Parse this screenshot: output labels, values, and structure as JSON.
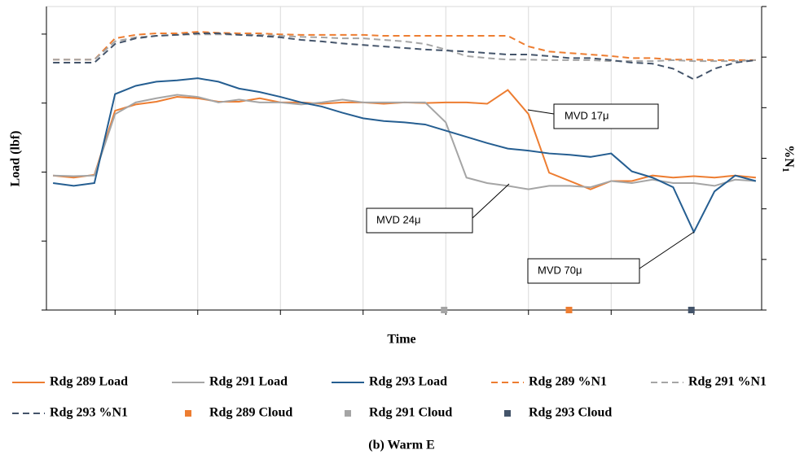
{
  "chart_data": {
    "type": "line",
    "title": "(b) Warm E",
    "xlabel": "Time",
    "ylabel": "Load (lbf)",
    "y2label": [
      "%N",
      "1"
    ],
    "x": [
      -0.75,
      -0.5,
      -0.25,
      0,
      0.25,
      0.5,
      0.75,
      1,
      1.25,
      1.5,
      1.75,
      2,
      2.25,
      2.5,
      2.75,
      3,
      3.25,
      3.5,
      3.75,
      4,
      4.25,
      4.5,
      4.75,
      5,
      5.25,
      5.5,
      5.75,
      6,
      6.25,
      6.5,
      6.75,
      7,
      7.25,
      7.5,
      7.75
    ],
    "xlim": [
      -0.83,
      7.82
    ],
    "xticks": [
      0,
      1,
      2,
      3,
      4,
      5,
      6,
      7
    ],
    "ylim": [
      0,
      4.4
    ],
    "yticks": [
      0,
      1,
      2,
      3,
      4
    ],
    "y2lim": [
      0,
      6
    ],
    "y2ticks": [
      0,
      1,
      2,
      3,
      4,
      5,
      6
    ],
    "grid": "x",
    "series": [
      {
        "name": "Rdg 289 Load",
        "color": "#ed7d31",
        "style": "solid",
        "values": [
          1.95,
          1.92,
          1.96,
          2.89,
          2.98,
          3.02,
          3.09,
          3.07,
          3.02,
          3.02,
          3.07,
          3.01,
          3.01,
          2.99,
          3.01,
          3.01,
          2.99,
          3.01,
          3.0,
          3.01,
          3.01,
          2.99,
          3.19,
          2.84,
          1.99,
          1.87,
          1.75,
          1.87,
          1.87,
          1.95,
          1.92,
          1.94,
          1.92,
          1.95,
          1.92
        ]
      },
      {
        "name": "Rdg 291 Load",
        "color": "#a5a5a5",
        "style": "solid",
        "values": [
          1.95,
          1.94,
          1.95,
          2.84,
          3.01,
          3.07,
          3.12,
          3.09,
          3.01,
          3.05,
          3.01,
          3.01,
          2.98,
          3.01,
          3.05,
          3.01,
          3.01,
          3.01,
          3.01,
          2.72,
          1.92,
          1.84,
          1.8,
          1.75,
          1.8,
          1.8,
          1.78,
          1.87,
          1.84,
          1.89,
          1.84,
          1.84,
          1.8,
          1.89,
          1.87
        ]
      },
      {
        "name": "Rdg 293 Load",
        "color": "#255e91",
        "style": "solid",
        "values": [
          1.84,
          1.8,
          1.84,
          3.13,
          3.25,
          3.31,
          3.33,
          3.36,
          3.31,
          3.21,
          3.16,
          3.09,
          3.01,
          2.95,
          2.86,
          2.78,
          2.74,
          2.72,
          2.69,
          2.6,
          2.51,
          2.42,
          2.34,
          2.31,
          2.27,
          2.25,
          2.22,
          2.27,
          2.01,
          1.92,
          1.78,
          1.13,
          1.72,
          1.95,
          1.87
        ]
      },
      {
        "name": "Rdg 289 %N1",
        "color": "#ed7d31",
        "style": "dashed",
        "axis": "y2",
        "values": [
          4.95,
          4.95,
          4.95,
          5.37,
          5.44,
          5.47,
          5.47,
          5.5,
          5.48,
          5.47,
          5.47,
          5.45,
          5.44,
          5.44,
          5.44,
          5.44,
          5.42,
          5.42,
          5.42,
          5.42,
          5.42,
          5.42,
          5.42,
          5.21,
          5.11,
          5.08,
          5.05,
          5.02,
          4.98,
          4.98,
          4.95,
          4.95,
          4.94,
          4.94,
          4.94
        ]
      },
      {
        "name": "Rdg 291 %N1",
        "color": "#a5a5a5",
        "style": "dashed",
        "axis": "y2",
        "values": [
          4.95,
          4.95,
          4.95,
          5.31,
          5.39,
          5.42,
          5.44,
          5.45,
          5.45,
          5.44,
          5.44,
          5.42,
          5.4,
          5.39,
          5.37,
          5.37,
          5.34,
          5.31,
          5.26,
          5.15,
          5.02,
          4.98,
          4.95,
          4.95,
          4.94,
          4.94,
          4.94,
          4.92,
          4.92,
          4.92,
          4.94,
          4.92,
          4.92,
          4.92,
          4.94
        ]
      },
      {
        "name": "Rdg 293 %N1",
        "color": "#44546a",
        "style": "dashed",
        "axis": "y2",
        "values": [
          4.89,
          4.89,
          4.89,
          5.26,
          5.37,
          5.42,
          5.44,
          5.47,
          5.47,
          5.44,
          5.42,
          5.39,
          5.34,
          5.31,
          5.27,
          5.24,
          5.21,
          5.18,
          5.15,
          5.13,
          5.11,
          5.08,
          5.05,
          5.05,
          5.02,
          4.98,
          4.98,
          4.94,
          4.89,
          4.87,
          4.77,
          4.56,
          4.77,
          4.89,
          4.94
        ]
      }
    ],
    "clouds": [
      {
        "name": "Rdg 289 Cloud",
        "color": "#ed7d31",
        "x": [
          5.49
        ],
        "values": [
          0
        ]
      },
      {
        "name": "Rdg 291 Cloud",
        "color": "#a5a5a5",
        "x": [
          3.98
        ],
        "values": [
          0
        ]
      },
      {
        "name": "Rdg 293 Cloud",
        "color": "#44546a",
        "x": [
          6.97
        ],
        "values": [
          0
        ]
      }
    ],
    "annotations": [
      "MVD 17μ",
      "MVD 24μ",
      "MVD 70μ"
    ]
  }
}
